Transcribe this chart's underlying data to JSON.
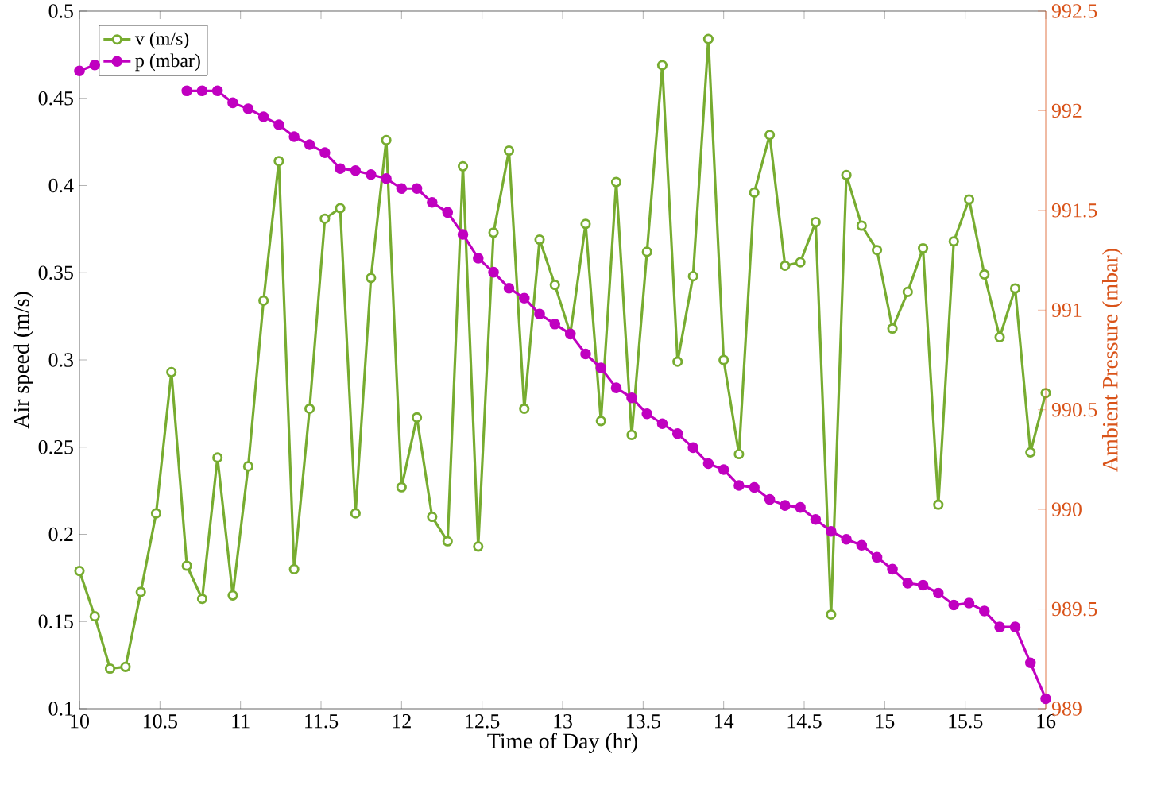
{
  "chart_data": {
    "type": "line",
    "xlabel": "Time of Day (hr)",
    "ylabel": "Air speed (m/s)",
    "y2label": "Ambient Pressure (mbar)",
    "x": [
      10,
      10.095,
      10.19,
      10.286,
      10.381,
      10.476,
      10.571,
      10.667,
      10.762,
      10.857,
      10.952,
      11.048,
      11.143,
      11.238,
      11.333,
      11.429,
      11.524,
      11.619,
      11.714,
      11.81,
      11.905,
      12,
      12.095,
      12.19,
      12.286,
      12.381,
      12.476,
      12.571,
      12.667,
      12.762,
      12.857,
      12.952,
      13.048,
      13.143,
      13.238,
      13.333,
      13.429,
      13.524,
      13.619,
      13.714,
      13.81,
      13.905,
      14,
      14.095,
      14.19,
      14.286,
      14.381,
      14.476,
      14.571,
      14.667,
      14.762,
      14.857,
      14.952,
      15.048,
      15.143,
      15.238,
      15.333,
      15.429,
      15.524,
      15.619,
      15.714,
      15.81,
      15.905,
      16
    ],
    "series": [
      {
        "name": "v (m/s)",
        "color": "#77ac30",
        "values": [
          0.179,
          0.153,
          0.123,
          0.124,
          0.167,
          0.212,
          0.293,
          0.182,
          0.163,
          0.244,
          0.165,
          0.239,
          0.334,
          0.414,
          0.18,
          0.272,
          0.381,
          0.387,
          0.212,
          0.347,
          0.426,
          0.227,
          0.267,
          0.21,
          0.196,
          0.411,
          0.193,
          0.373,
          0.42,
          0.272,
          0.369,
          0.343,
          0.315,
          0.378,
          0.265,
          0.402,
          0.257,
          0.362,
          0.469,
          0.299,
          0.348,
          0.484,
          0.3,
          0.246,
          0.396,
          0.429,
          0.354,
          0.356,
          0.379,
          0.154,
          0.406,
          0.377,
          0.363,
          0.318,
          0.339,
          0.364,
          0.217,
          0.368,
          0.392,
          0.349,
          0.313,
          0.341,
          0.247,
          0.281
        ]
      },
      {
        "name": "p (mbar)",
        "color": "#c000c0",
        "axis": "y2",
        "values": [
          992.2,
          992.23,
          null,
          null,
          null,
          null,
          null,
          992.1,
          992.1,
          992.1,
          992.04,
          992.01,
          991.97,
          991.93,
          991.87,
          991.83,
          991.79,
          991.71,
          991.7,
          991.68,
          991.66,
          991.61,
          991.61,
          991.54,
          991.49,
          991.38,
          991.26,
          991.19,
          991.11,
          991.06,
          990.98,
          990.93,
          990.88,
          990.78,
          990.71,
          990.61,
          990.56,
          990.48,
          990.43,
          990.38,
          990.31,
          990.23,
          990.2,
          990.12,
          990.11,
          990.05,
          990.02,
          990.01,
          989.95,
          989.89,
          989.85,
          989.82,
          989.76,
          989.7,
          989.63,
          989.62,
          989.58,
          989.52,
          989.53,
          989.49,
          989.41,
          989.41,
          989.23,
          989.05
        ]
      }
    ],
    "xlim": [
      10,
      16
    ],
    "xticks": [
      10,
      10.5,
      11,
      11.5,
      12,
      12.5,
      13,
      13.5,
      14,
      14.5,
      15,
      15.5,
      16
    ],
    "ylim": [
      0.1,
      0.5
    ],
    "yticks": [
      0.1,
      0.15,
      0.2,
      0.25,
      0.3,
      0.35,
      0.4,
      0.45,
      0.5
    ],
    "y2lim": [
      989,
      992.5
    ],
    "y2ticks": [
      989,
      989.5,
      990,
      990.5,
      991,
      991.5,
      992,
      992.5
    ],
    "legend": "top left",
    "marker": "circle",
    "line_style": "solid",
    "grid": false
  }
}
